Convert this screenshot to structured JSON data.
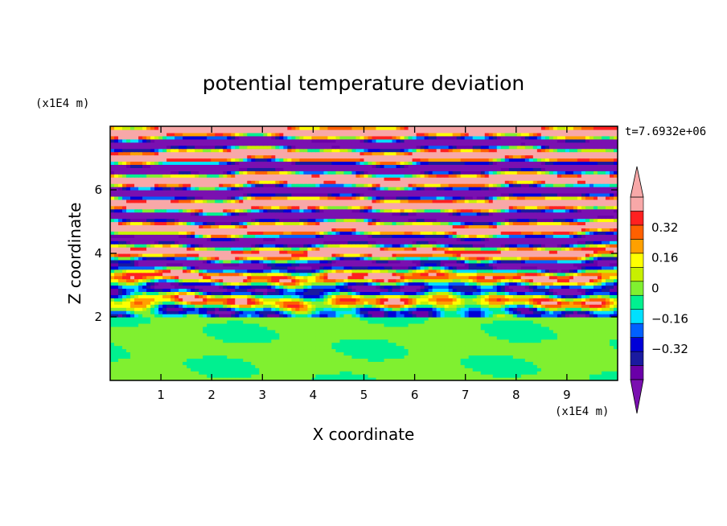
{
  "chart_data": {
    "type": "heatmap",
    "title": "potential temperature deviation",
    "xlabel": "X coordinate",
    "ylabel": "Z coordinate",
    "x_unit": "(x1E4 m)",
    "y_unit": "(x1E4 m)",
    "time_label": "t=7.6932e+06",
    "xlim": [
      0,
      10
    ],
    "ylim": [
      0,
      8
    ],
    "x_ticks": [
      "1",
      "2",
      "3",
      "4",
      "5",
      "6",
      "7",
      "8",
      "9"
    ],
    "y_ticks": [
      "2",
      "4",
      "6"
    ],
    "colorbar": {
      "levels": [
        -0.48,
        -0.4,
        -0.32,
        -0.24,
        -0.16,
        -0.08,
        0,
        0.08,
        0.16,
        0.24,
        0.32,
        0.4,
        0.48
      ],
      "labels": [
        "0.32",
        "0.16",
        "0",
        "−0.16",
        "−0.32"
      ],
      "label_values": [
        0.32,
        0.16,
        0,
        -0.16,
        -0.32
      ],
      "colors_low_to_high": [
        "#6a00a8",
        "#1a1aa0",
        "#0000d8",
        "#0060ff",
        "#00e0ff",
        "#00f090",
        "#80f030",
        "#c8f000",
        "#ffff00",
        "#ffa000",
        "#ff6000",
        "#ff2020",
        "#f8a8a8"
      ],
      "under_color": "#7a10b0",
      "over_color": "#f8a8a8"
    },
    "field_description_levels": {
      "z_0_to_2": "near 0 (green / light green patches)",
      "z_2_to_5": "mixed banded values spanning full range",
      "z_5_to_8": "alternating bands of high (pink) and low (purple) values"
    }
  }
}
